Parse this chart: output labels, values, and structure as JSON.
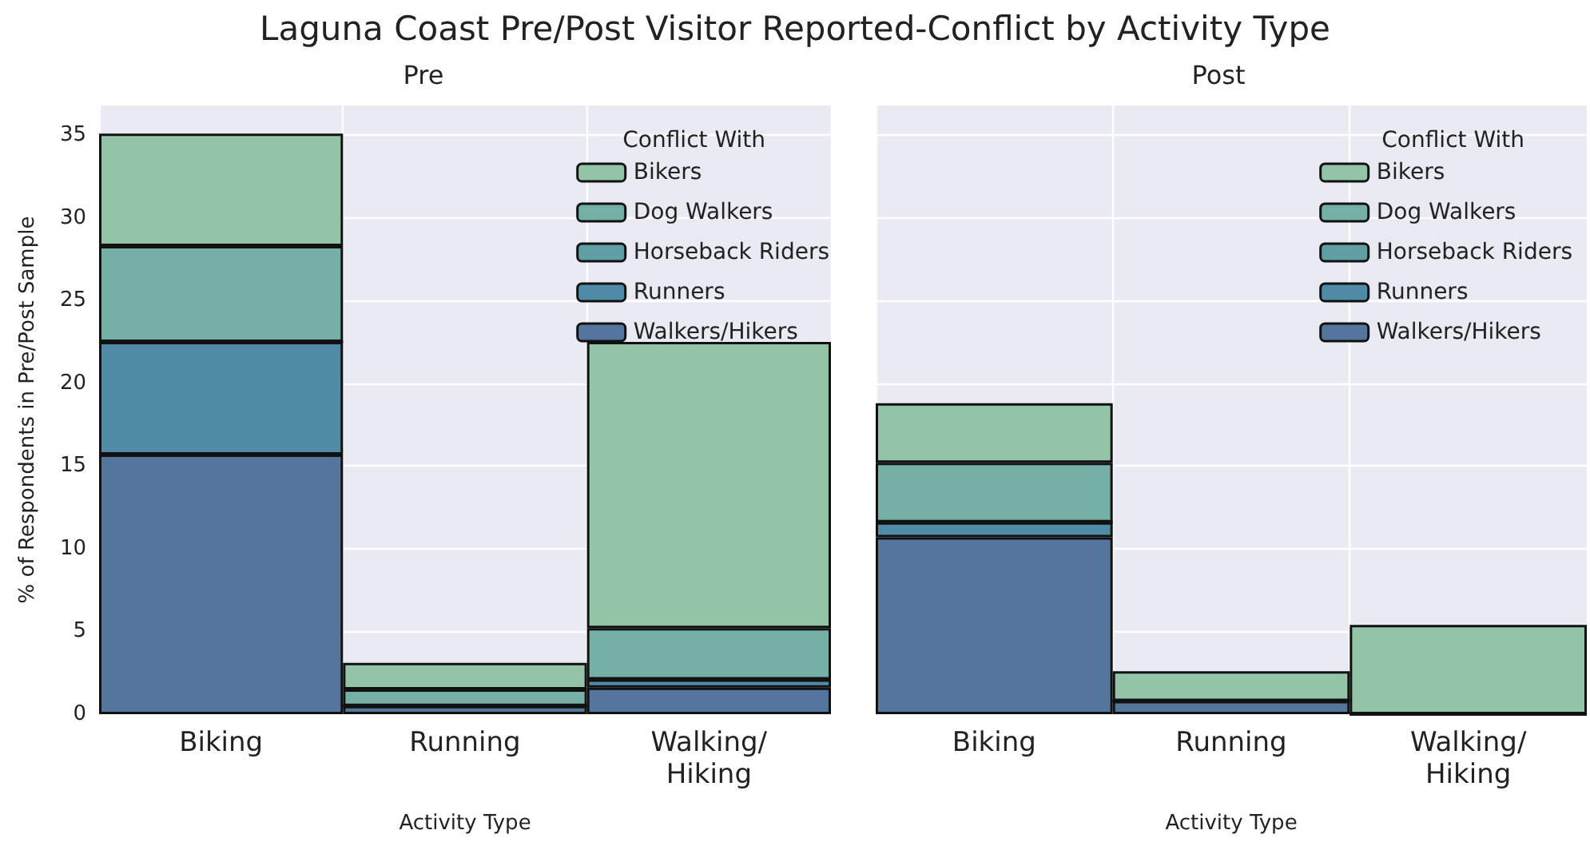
{
  "chart_data": [
    {
      "type": "bar",
      "title": "Laguna Coast Pre/Post Visitor Reported-Conflict by Activity Type",
      "subtitle": "Pre",
      "xlabel": "Activity Type",
      "ylabel": "% of Respondents in Pre/Post Sample",
      "legend_title": "Conflict With",
      "categories": [
        "Biking",
        "Running",
        "Walking/\nHiking"
      ],
      "stacked": true,
      "ylim": [
        0,
        36.8
      ],
      "yticks": [
        0,
        5,
        10,
        15,
        20,
        25,
        30,
        35
      ],
      "grid": true,
      "legend": "top right",
      "series": [
        {
          "name": "Walkers/Hikers",
          "color": "#54769c",
          "values": [
            15.7,
            0.5,
            1.6
          ]
        },
        {
          "name": "Runners",
          "color": "#4f8aa6",
          "values": [
            6.8,
            0,
            0.5
          ]
        },
        {
          "name": "Horseback Riders",
          "color": "#5f9ea3",
          "values": [
            0,
            0,
            0
          ]
        },
        {
          "name": "Dog Walkers",
          "color": "#74b0a6",
          "values": [
            5.8,
            1.0,
            3.1
          ]
        },
        {
          "name": "Bikers",
          "color": "#94c4a8",
          "values": [
            6.8,
            1.6,
            17.3
          ]
        }
      ]
    },
    {
      "type": "bar",
      "subtitle": "Post",
      "xlabel": "Activity Type",
      "legend_title": "Conflict With",
      "categories": [
        "Biking",
        "Running",
        "Walking/\nHiking"
      ],
      "stacked": true,
      "ylim": [
        0,
        36.8
      ],
      "yticks": [
        0,
        5,
        10,
        15,
        20,
        25,
        30,
        35
      ],
      "grid": true,
      "legend": "top right",
      "tick_labels": "x",
      "series": [
        {
          "name": "Walkers/Hikers",
          "color": "#54769c",
          "values": [
            10.7,
            0.8,
            0
          ]
        },
        {
          "name": "Runners",
          "color": "#4f8aa6",
          "values": [
            0.9,
            0,
            0
          ]
        },
        {
          "name": "Horseback Riders",
          "color": "#5f9ea3",
          "values": [
            0,
            0,
            0
          ]
        },
        {
          "name": "Dog Walkers",
          "color": "#74b0a6",
          "values": [
            3.6,
            0,
            0
          ]
        },
        {
          "name": "Bikers",
          "color": "#94c4a8",
          "values": [
            3.6,
            1.8,
            5.4
          ]
        }
      ]
    }
  ]
}
